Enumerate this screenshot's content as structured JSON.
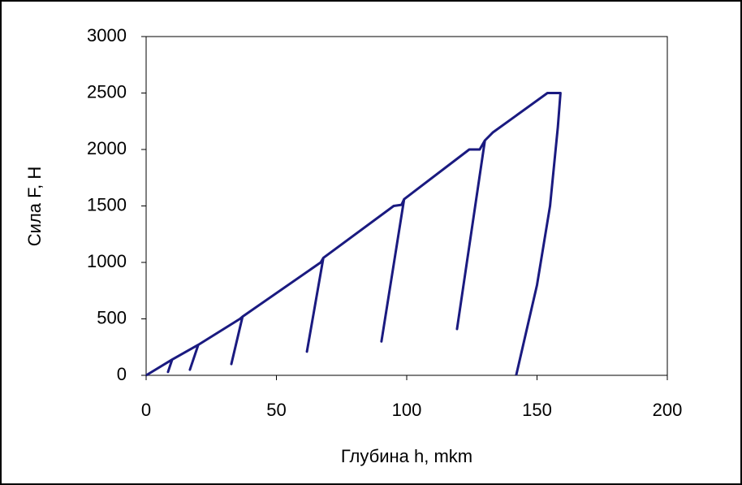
{
  "chart_data": {
    "type": "line",
    "x_label": "Глубина h, mkm",
    "y_label": "Сила F, Н",
    "x": [
      0,
      10,
      8.4,
      10,
      20,
      16.8,
      20,
      36,
      37,
      32.7,
      37,
      67,
      68,
      61.7,
      68,
      95,
      98,
      99,
      90.3,
      99,
      124,
      128,
      130,
      119.3,
      130,
      133,
      154,
      159,
      158,
      155,
      150,
      146,
      143,
      142
    ],
    "values": [
      0,
      140,
      30,
      140,
      270,
      50,
      270,
      500,
      520,
      100,
      520,
      1000,
      1040,
      210,
      1040,
      1500,
      1510,
      1560,
      300,
      1560,
      2000,
      2000,
      2080,
      410,
      2080,
      2150,
      2500,
      2500,
      2200,
      1500,
      800,
      400,
      100,
      0
    ],
    "color": "#1a1a80",
    "xlim": [
      0,
      200
    ],
    "xticks": [
      0,
      50,
      100,
      150,
      200
    ],
    "ylim": [
      0,
      3000
    ],
    "yticks": [
      0,
      500,
      1000,
      1500,
      2000,
      2500,
      3000
    ],
    "grid": false
  }
}
